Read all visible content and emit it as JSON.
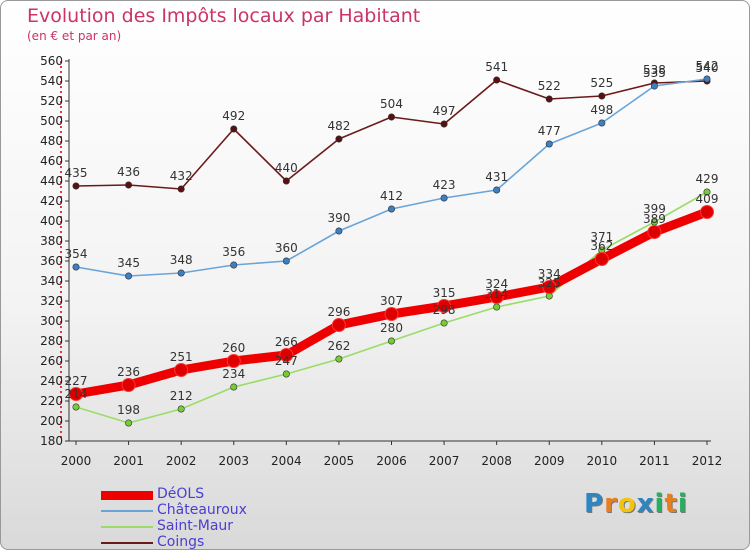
{
  "title": "Evolution des Impôts locaux par Habitant",
  "subtitle": "(en € et par an)",
  "logo": {
    "text": "Proxiti",
    "letters": [
      "P",
      "r",
      "o",
      "x",
      "i",
      "t",
      "i"
    ],
    "colors": [
      "#2e86c1",
      "#e67e22",
      "#f1c40f",
      "#2e86c1",
      "#27ae60",
      "#e67e22",
      "#27ae60"
    ]
  },
  "chart_data": {
    "type": "line",
    "categories": [
      "2000",
      "2001",
      "2002",
      "2003",
      "2004",
      "2005",
      "2006",
      "2007",
      "2008",
      "2009",
      "2010",
      "2011",
      "2012"
    ],
    "ylim": [
      180,
      560
    ],
    "yticks": [
      180,
      200,
      220,
      240,
      260,
      280,
      300,
      320,
      340,
      360,
      380,
      400,
      420,
      440,
      460,
      480,
      500,
      520,
      540,
      560
    ],
    "grid": false,
    "legend_position": "bottom-left",
    "series": [
      {
        "name": "Coings",
        "color": "#6b1a1a",
        "marker": "#5a1010",
        "values": [
          435,
          436,
          432,
          492,
          440,
          482,
          504,
          497,
          541,
          522,
          525,
          538,
          540
        ],
        "labels": [
          "435",
          "436",
          "432",
          "492",
          "440",
          "482",
          "504",
          "497",
          "541",
          "522",
          "525",
          "538",
          "540"
        ]
      },
      {
        "name": "Châteauroux",
        "color": "#6aa4d8",
        "marker": "#3c7fc4",
        "values": [
          354,
          345,
          348,
          356,
          360,
          390,
          412,
          423,
          431,
          477,
          498,
          535,
          542
        ],
        "labels": [
          "354",
          "345",
          "348",
          "356",
          "360",
          "390",
          "412",
          "423",
          "431",
          "477",
          "498",
          "535",
          "542"
        ]
      },
      {
        "name": "Saint-Maur",
        "color": "#99dd66",
        "marker": "#77cc33",
        "values": [
          214,
          198,
          212,
          234,
          247,
          262,
          280,
          298,
          314,
          325,
          371,
          399,
          429
        ],
        "labels": [
          "214",
          "198",
          "212",
          "234",
          "247",
          "262",
          "280",
          "298",
          "314",
          "325",
          "371",
          "399",
          "429"
        ]
      },
      {
        "name": "DéOLS",
        "color": "#ee0000",
        "marker": "#dd0000",
        "values": [
          227,
          236,
          251,
          260,
          266,
          296,
          307,
          315,
          324,
          334,
          362,
          389,
          409
        ],
        "labels": [
          "227",
          "236",
          "251",
          "260",
          "266",
          "296",
          "307",
          "315",
          "324",
          "334",
          "362",
          "389",
          "409"
        ]
      }
    ]
  },
  "legend": [
    {
      "name": "DéOLS",
      "color": "#ee0000",
      "thickness": 9
    },
    {
      "name": "Châteauroux",
      "color": "#6aa4d8",
      "thickness": 2
    },
    {
      "name": "Saint-Maur",
      "color": "#99dd66",
      "thickness": 2
    },
    {
      "name": "Coings",
      "color": "#6b1a1a",
      "thickness": 2
    }
  ]
}
